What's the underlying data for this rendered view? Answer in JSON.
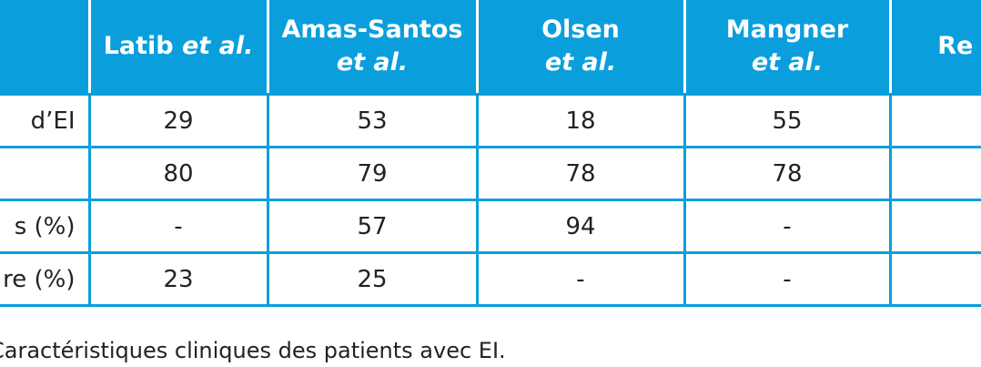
{
  "table": {
    "headers": [
      {
        "line1": "",
        "line2": ""
      },
      {
        "name": "Latib",
        "etal": "et al."
      },
      {
        "line1": "Amas-Santos",
        "line2": "et al."
      },
      {
        "line1": "Olsen",
        "line2": "et al."
      },
      {
        "line1": "Mangner",
        "line2": "et al."
      },
      {
        "line1": "Re",
        "line2": ""
      }
    ],
    "rows": [
      {
        "label": "d’EI",
        "cells": [
          "29",
          "53",
          "18",
          "55",
          ""
        ]
      },
      {
        "label": "",
        "cells": [
          "80",
          "79",
          "78",
          "78",
          ""
        ]
      },
      {
        "label": "s (%)",
        "cells": [
          "-",
          "57",
          "94",
          "-",
          ""
        ]
      },
      {
        "label": "re (%)",
        "cells": [
          "23",
          "25",
          "-",
          "-",
          ""
        ]
      }
    ]
  },
  "caption": "Caractéristiques cliniques des patients avec EI.",
  "colors": {
    "header_bg": "#0a9fdc",
    "header_text": "#ffffff",
    "border": "#0a9fdc"
  }
}
